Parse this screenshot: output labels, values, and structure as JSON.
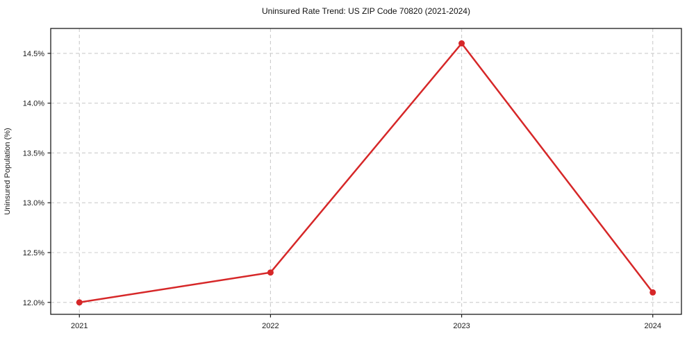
{
  "chart_data": {
    "type": "line",
    "title": "Uninsured Rate Trend: US ZIP Code 70820 (2021-2024)",
    "xlabel": "",
    "ylabel": "Uninsured Population (%)",
    "x": [
      2021,
      2022,
      2023,
      2024
    ],
    "values": [
      12.0,
      12.3,
      14.6,
      12.1
    ],
    "xlim": [
      2020.85,
      2024.15
    ],
    "ylim": [
      11.88,
      14.75
    ],
    "xticks": [
      2021,
      2022,
      2023,
      2024
    ],
    "xtick_labels": [
      "2021",
      "2022",
      "2023",
      "2024"
    ],
    "yticks": [
      12.0,
      12.5,
      13.0,
      13.5,
      14.0,
      14.5
    ],
    "ytick_labels": [
      "12.0%",
      "12.5%",
      "13.0%",
      "13.5%",
      "14.0%",
      "14.5%"
    ],
    "grid": true,
    "grid_style": "dashed",
    "legend": false,
    "line_color": "#d62728",
    "marker": "circle",
    "grid_color": "#cccccc",
    "axis_color": "#1a1a1a",
    "background_color": "#ffffff"
  }
}
